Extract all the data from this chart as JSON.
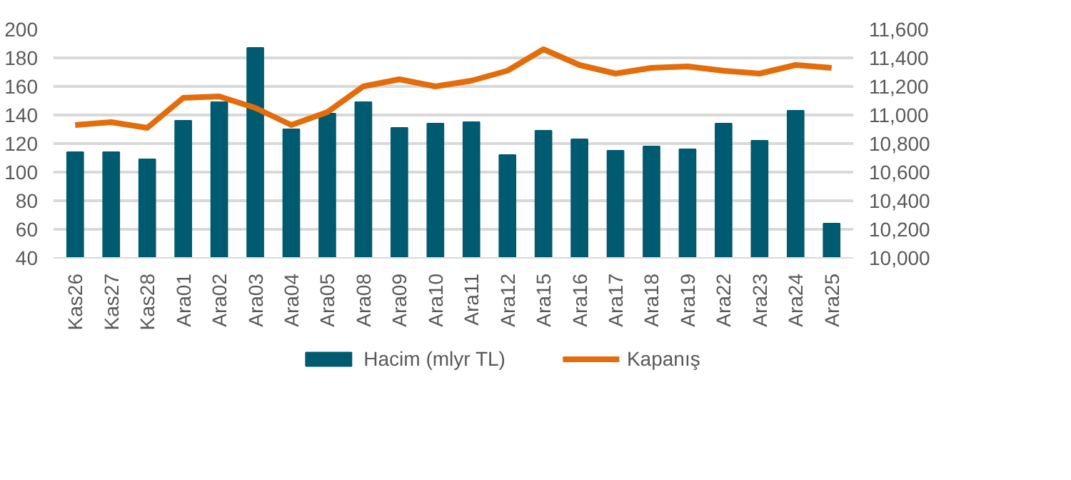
{
  "chart_data": {
    "type": "bar",
    "categories": [
      "Kas26",
      "Kas27",
      "Kas28",
      "Ara01",
      "Ara02",
      "Ara03",
      "Ara04",
      "Ara05",
      "Ara08",
      "Ara09",
      "Ara10",
      "Ara11",
      "Ara12",
      "Ara15",
      "Ara16",
      "Ara17",
      "Ara18",
      "Ara19",
      "Ara22",
      "Ara23",
      "Ara24",
      "Ara25"
    ],
    "series": [
      {
        "name": "Hacim (mlyr TL)",
        "color": "#005a70",
        "values": [
          114,
          114,
          109,
          136,
          149,
          187,
          130,
          141,
          149,
          131,
          134,
          135,
          112,
          129,
          123,
          115,
          118,
          116,
          134,
          122,
          143,
          64
        ]
      },
      {
        "name": "Kapanış",
        "type": "line",
        "axis": "y2",
        "color": "#e46c0a",
        "values": [
          10930,
          10950,
          10910,
          11120,
          11130,
          11050,
          10930,
          11020,
          11200,
          11250,
          11200,
          11240,
          11310,
          11460,
          11350,
          11290,
          11330,
          11340,
          11310,
          11290,
          11350,
          11330
        ]
      }
    ],
    "ylim": [
      40,
      200
    ],
    "yticks": [
      40,
      60,
      80,
      100,
      120,
      140,
      160,
      180,
      200
    ],
    "y2lim": [
      10000,
      11600
    ],
    "y2ticks": [
      {
        "value": 10000,
        "label": "10,000"
      },
      {
        "value": 10200,
        "label": "10,200"
      },
      {
        "value": 10400,
        "label": "10,400"
      },
      {
        "value": 10600,
        "label": "10,600"
      },
      {
        "value": 10800,
        "label": "10,800"
      },
      {
        "value": 11000,
        "label": "11,000"
      },
      {
        "value": 11200,
        "label": "11,200"
      },
      {
        "value": 11400,
        "label": "11,400"
      },
      {
        "value": 11600,
        "label": "11,600"
      }
    ],
    "grid": "y",
    "legend": "bottom"
  }
}
